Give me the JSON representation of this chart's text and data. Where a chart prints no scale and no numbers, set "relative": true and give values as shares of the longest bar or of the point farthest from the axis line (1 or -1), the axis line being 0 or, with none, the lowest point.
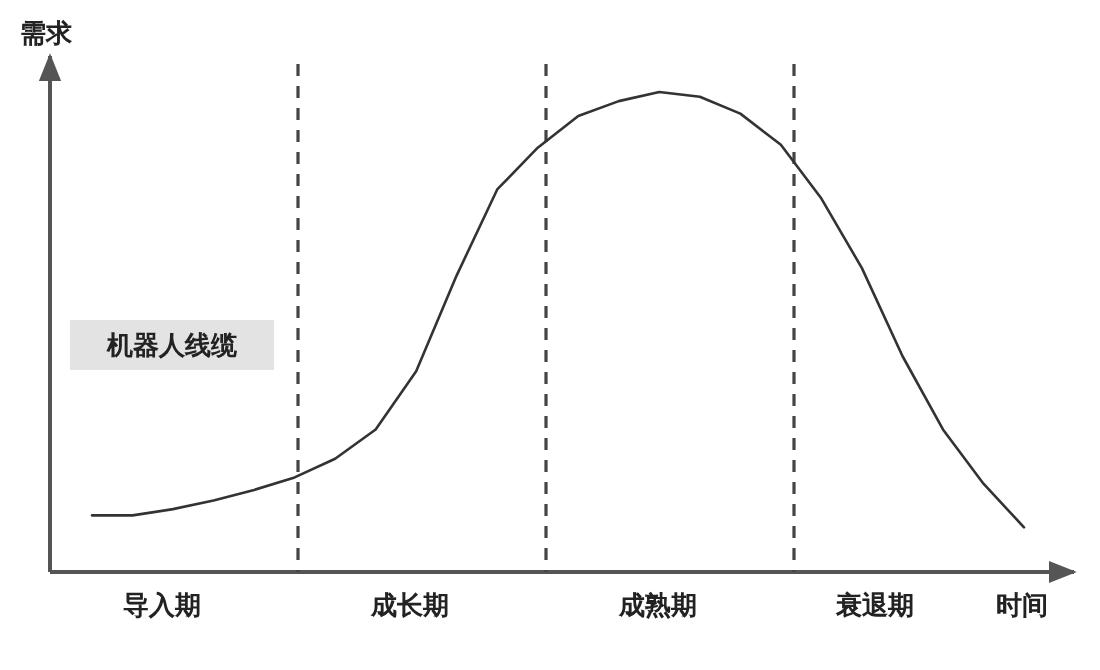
{
  "chart_data": {
    "type": "line",
    "relative": true,
    "title": "机器人线缆",
    "ylabel": "需求",
    "xlabel": "时间",
    "marker": "none",
    "line_style": "solid",
    "categories": [
      null,
      null,
      null,
      null,
      null,
      null,
      null,
      null,
      null,
      null,
      null,
      null,
      null,
      null,
      null,
      null,
      null,
      null,
      null,
      null,
      null,
      null,
      null,
      null
    ],
    "series": [
      {
        "color": "#333333",
        "values": [
          0.118,
          0.118,
          0.131,
          0.149,
          0.171,
          0.197,
          0.236,
          0.297,
          0.418,
          0.618,
          0.797,
          0.884,
          0.95,
          0.981,
          1,
          0.99,
          0.955,
          0.89,
          0.778,
          0.633,
          0.45,
          0.297,
          0.184,
          0.093
        ]
      }
    ],
    "annotations": [
      "导入期",
      "成长期",
      "成熟期",
      "衰退期"
    ]
  }
}
